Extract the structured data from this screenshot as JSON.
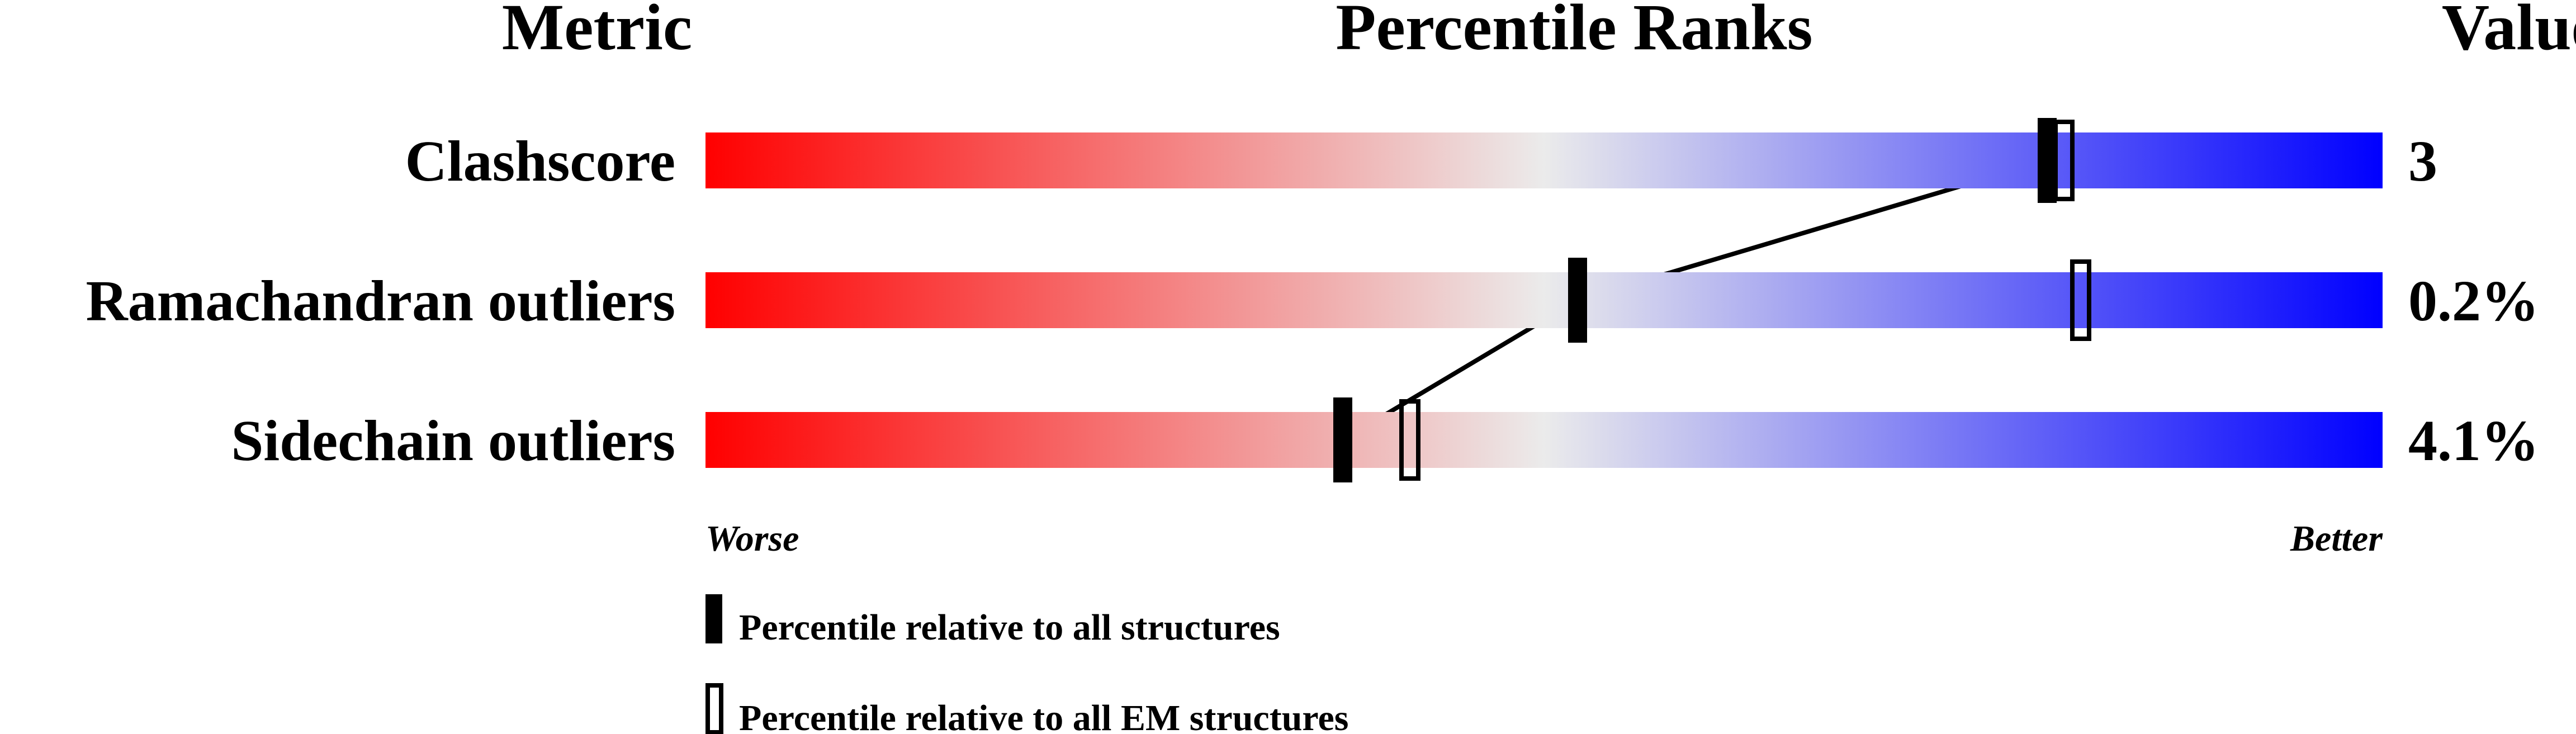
{
  "chart_data": {
    "type": "percentile-slider",
    "headers": {
      "metric": "Metric",
      "ranks": "Percentile Ranks",
      "value": "Value"
    },
    "axis": {
      "worse_label": "Worse",
      "better_label": "Better",
      "range": [
        0,
        100
      ]
    },
    "gradient_colors": [
      "#ff0000",
      "#ebebeb",
      "#0000ff"
    ],
    "rows": [
      {
        "metric": "Clashscore",
        "value": "3",
        "percentile_all": 80,
        "percentile_em": 81
      },
      {
        "metric": "Ramachandran outliers",
        "value": "0.2%",
        "percentile_all": 52,
        "percentile_em": 82
      },
      {
        "metric": "Sidechain outliers",
        "value": "4.1%",
        "percentile_all": 38,
        "percentile_em": 42
      }
    ],
    "legend": [
      {
        "marker": "filled",
        "label": "Percentile relative to all structures"
      },
      {
        "marker": "open",
        "label": "Percentile relative to all EM structures"
      }
    ]
  }
}
